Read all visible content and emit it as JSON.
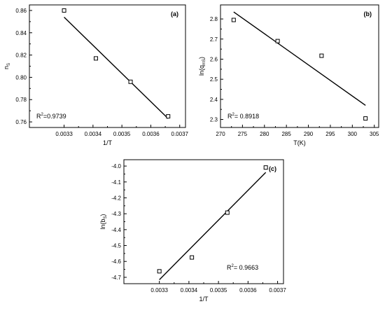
{
  "chart_data": [
    {
      "type": "scatter",
      "panel_label": "(a)",
      "xlabel": "1/T",
      "ylabel_main": "n",
      "ylabel_sub": "S",
      "xlim": [
        0.00318,
        0.00372
      ],
      "ylim": [
        0.755,
        0.865
      ],
      "xticks": [
        0.0033,
        0.0034,
        0.0035,
        0.0036,
        0.0037
      ],
      "xtick_labels": [
        "0.0033",
        "0.0034",
        "0.0035",
        "0.0036",
        "0.0037"
      ],
      "yticks": [
        0.76,
        0.78,
        0.8,
        0.82,
        0.84,
        0.86
      ],
      "ytick_labels": [
        "0.76",
        "0.78",
        "0.80",
        "0.82",
        "0.84",
        "0.86"
      ],
      "points": [
        {
          "x": 0.0033,
          "y": 0.86
        },
        {
          "x": 0.00341,
          "y": 0.817
        },
        {
          "x": 0.00353,
          "y": 0.796
        },
        {
          "x": 0.00366,
          "y": 0.765
        }
      ],
      "fit_line": [
        {
          "x": 0.0033,
          "y": 0.854
        },
        {
          "x": 0.00366,
          "y": 0.763
        }
      ],
      "r2_prefix": "R",
      "r2_sup": "2",
      "r2_value": "=0.9739",
      "r2_position": "bottom-left"
    },
    {
      "type": "scatter",
      "panel_label": "(b)",
      "xlabel": "T(K)",
      "ylabel_main": "ln(q",
      "ylabel_sub": "mS",
      "ylabel_end": ")",
      "xlim": [
        270,
        306
      ],
      "ylim": [
        2.26,
        2.87
      ],
      "xticks": [
        270,
        275,
        280,
        285,
        290,
        295,
        300,
        305
      ],
      "xtick_labels": [
        "270",
        "275",
        "280",
        "285",
        "290",
        "295",
        "300",
        "305"
      ],
      "yticks": [
        2.3,
        2.4,
        2.5,
        2.6,
        2.7,
        2.8
      ],
      "ytick_labels": [
        "2.3",
        "2.4",
        "2.5",
        "2.6",
        "2.7",
        "2.8"
      ],
      "points": [
        {
          "x": 273,
          "y": 2.795
        },
        {
          "x": 283,
          "y": 2.69
        },
        {
          "x": 293,
          "y": 2.617
        },
        {
          "x": 303,
          "y": 2.305
        }
      ],
      "fit_line": [
        {
          "x": 273,
          "y": 2.835
        },
        {
          "x": 303,
          "y": 2.37
        }
      ],
      "r2_prefix": "R",
      "r2_sup": "2",
      "r2_value": "= 0.8918",
      "r2_position": "bottom-left"
    },
    {
      "type": "scatter",
      "panel_label": "(c)",
      "xlabel": "1/T",
      "ylabel_main": "ln(b",
      "ylabel_sub": "S",
      "ylabel_end": ")",
      "xlim": [
        0.00318,
        0.00372
      ],
      "ylim": [
        -4.74,
        -3.96
      ],
      "xticks": [
        0.0033,
        0.0034,
        0.0035,
        0.0036,
        0.0037
      ],
      "xtick_labels": [
        "0.0033",
        "0.0034",
        "0.0035",
        "0.0036",
        "0.0037"
      ],
      "yticks": [
        -4.7,
        -4.6,
        -4.5,
        -4.4,
        -4.3,
        -4.2,
        -4.1,
        -4.0
      ],
      "ytick_labels": [
        "-4.7",
        "-4.6",
        "-4.5",
        "-4.4",
        "-4.3",
        "-4.2",
        "-4.1",
        "-4.0"
      ],
      "points": [
        {
          "x": 0.0033,
          "y": -4.662
        },
        {
          "x": 0.00341,
          "y": -4.575
        },
        {
          "x": 0.00353,
          "y": -4.293
        },
        {
          "x": 0.00366,
          "y": -4.009
        }
      ],
      "fit_line": [
        {
          "x": 0.0033,
          "y": -4.715
        },
        {
          "x": 0.00366,
          "y": -4.04
        }
      ],
      "r2_prefix": "R",
      "r2_sup": "2",
      "r2_value": "= 0.9663",
      "r2_position": "bottom-right"
    }
  ]
}
